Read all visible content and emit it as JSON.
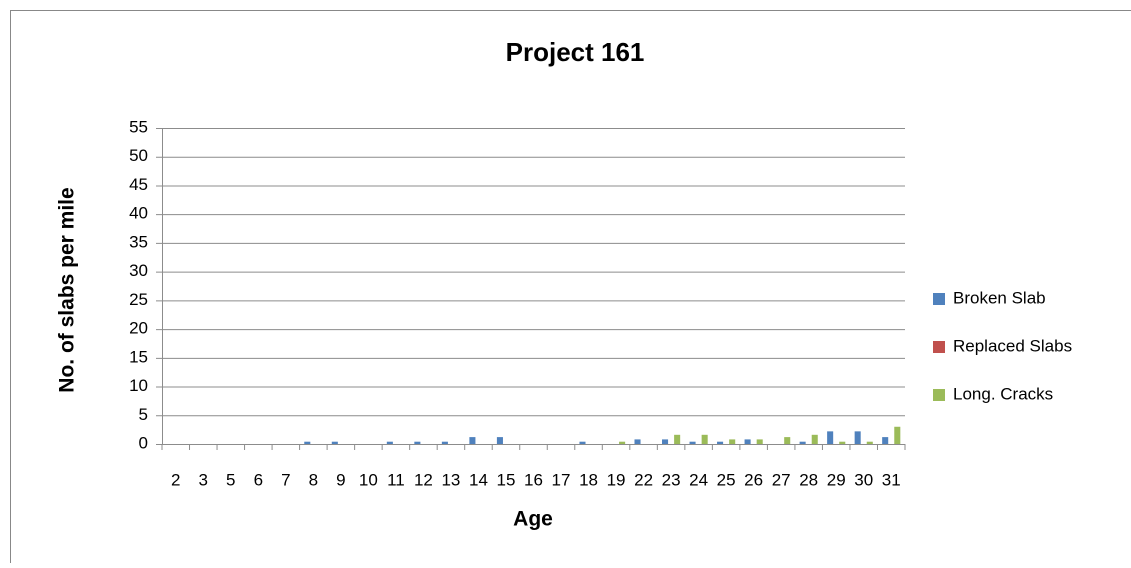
{
  "chart_data": {
    "type": "bar",
    "title": "Project 161",
    "x_label": "Age",
    "y_label": "No. of slabs per mile",
    "categories": [
      "2",
      "3",
      "5",
      "6",
      "7",
      "8",
      "9",
      "10",
      "11",
      "12",
      "13",
      "14",
      "15",
      "16",
      "17",
      "18",
      "19",
      "22",
      "23",
      "24",
      "25",
      "26",
      "27",
      "28",
      "29",
      "30",
      "31"
    ],
    "series": [
      {
        "name": "Broken Slab",
        "color": "#4f81bd",
        "values": [
          0,
          0,
          0,
          0,
          0,
          0.4,
          0.4,
          0,
          0.4,
          0.4,
          0.4,
          1.2,
          1.2,
          0,
          0,
          0.4,
          0,
          0.8,
          0.8,
          0.4,
          0.4,
          0.8,
          0,
          0.4,
          2.2,
          2.2,
          1.2
        ]
      },
      {
        "name": "Replaced Slabs",
        "color": "#c0504d",
        "values": [
          0,
          0,
          0,
          0,
          0,
          0,
          0,
          0,
          0,
          0,
          0,
          0,
          0,
          0,
          0,
          0,
          0,
          0,
          0,
          0,
          0,
          0,
          0,
          0,
          0,
          0,
          0
        ]
      },
      {
        "name": "Long. Cracks",
        "color": "#9bbb59",
        "values": [
          0,
          0,
          0,
          0,
          0,
          0,
          0,
          0,
          0,
          0,
          0,
          0,
          0,
          0,
          0,
          0,
          0.4,
          0,
          1.6,
          1.6,
          0.8,
          0.8,
          1.2,
          1.6,
          0.4,
          0.4,
          3.0
        ]
      }
    ],
    "ylim": [
      0,
      55
    ],
    "yticks": [
      0,
      5,
      10,
      15,
      20,
      25,
      30,
      35,
      40,
      45,
      50,
      55
    ],
    "grid": true,
    "legend": "right"
  }
}
